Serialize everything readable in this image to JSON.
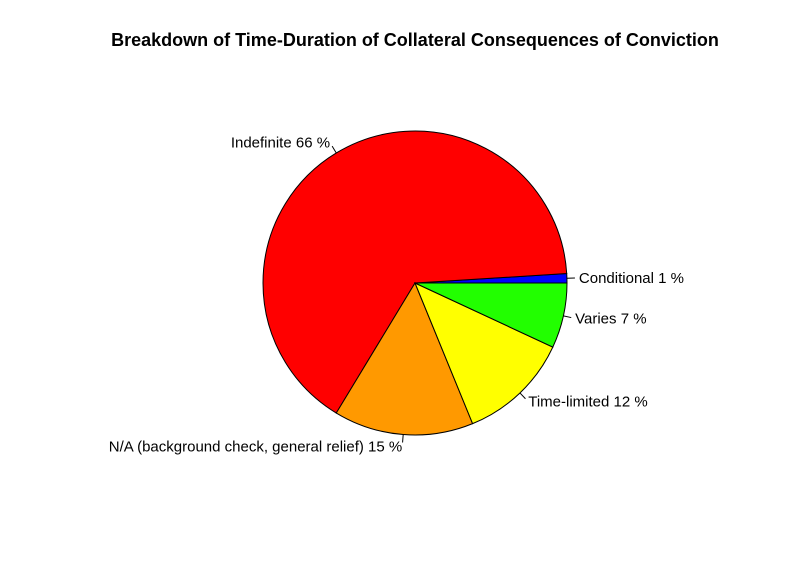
{
  "chart_data": {
    "type": "pie",
    "title": "Breakdown of Time-Duration of Collateral Consequences of Conviction",
    "slices": [
      {
        "label": "Conditional",
        "value": 1,
        "display": "Conditional 1 %",
        "color": "#0000ff"
      },
      {
        "label": "Indefinite",
        "value": 66,
        "display": "Indefinite 66 %",
        "color": "#ff0000"
      },
      {
        "label": "N/A (background check, general relief)",
        "value": 15,
        "display": "N/A (background check, general relief) 15 %",
        "color": "#ff9900"
      },
      {
        "label": "Time-limited",
        "value": 12,
        "display": "Time-limited 12 %",
        "color": "#ffff00"
      },
      {
        "label": "Varies",
        "value": 7,
        "display": "Varies 7 %",
        "color": "#22ff00"
      }
    ]
  }
}
